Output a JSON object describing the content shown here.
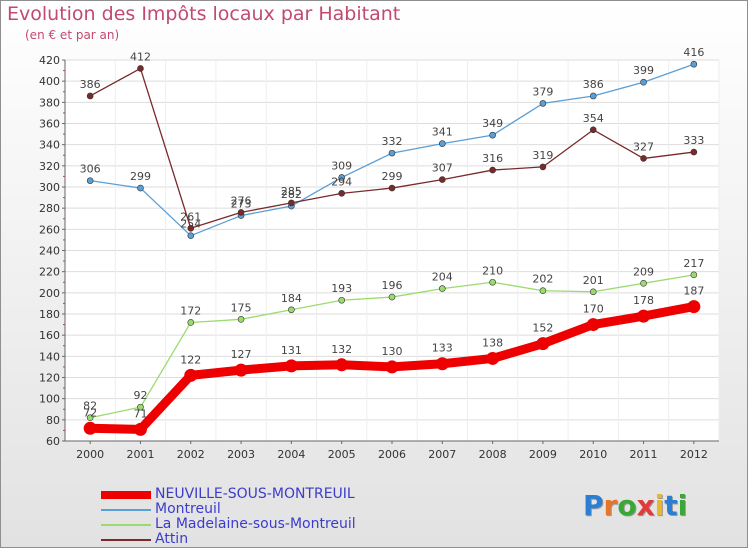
{
  "title": "Evolution des Impôts locaux par Habitant",
  "subtitle": "(en € et par an)",
  "logo_text": "Proxiti",
  "chart_data": {
    "type": "line",
    "title": "Evolution des Impôts locaux par Habitant",
    "subtitle": "(en € et par an)",
    "x": [
      "2000",
      "2001",
      "2002",
      "2003",
      "2004",
      "2005",
      "2006",
      "2007",
      "2008",
      "2009",
      "2010",
      "2011",
      "2012"
    ],
    "ylim": [
      60,
      420
    ],
    "yticks": [
      60,
      80,
      100,
      120,
      140,
      160,
      180,
      200,
      220,
      240,
      260,
      280,
      300,
      320,
      340,
      360,
      380,
      400,
      420
    ],
    "grid": "horizontal",
    "legend_position": "bottom-left",
    "series": [
      {
        "name": "NEUVILLE-SOUS-MONTREUIL",
        "color": "#ee0000",
        "values": [
          72,
          71,
          122,
          127,
          131,
          132,
          130,
          133,
          138,
          152,
          170,
          178,
          187
        ],
        "thick": true
      },
      {
        "name": "Montreuil",
        "color": "#5a9fd6",
        "values": [
          306,
          299,
          254,
          273,
          282,
          309,
          332,
          341,
          349,
          379,
          386,
          399,
          416
        ],
        "thick": false
      },
      {
        "name": "La Madelaine-sous-Montreuil",
        "color": "#9adb6e",
        "values": [
          82,
          92,
          172,
          175,
          184,
          193,
          196,
          204,
          210,
          202,
          201,
          209,
          217
        ],
        "thick": false
      },
      {
        "name": "Attin",
        "color": "#7a2a2a",
        "values": [
          386,
          412,
          261,
          276,
          285,
          294,
          299,
          307,
          316,
          319,
          354,
          327,
          333
        ],
        "thick": false
      }
    ]
  }
}
